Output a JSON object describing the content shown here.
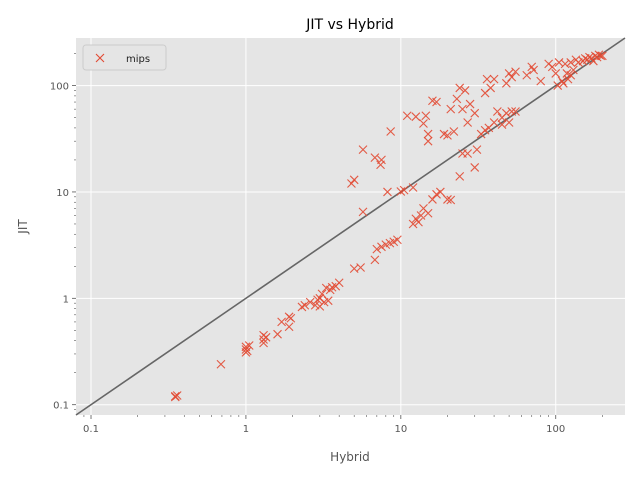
{
  "chart_data": {
    "type": "scatter",
    "title": "JIT vs Hybrid",
    "xlabel": "Hybrid",
    "ylabel": "JIT",
    "xscale": "log",
    "yscale": "log",
    "xlim": [
      0.08,
      280
    ],
    "ylim": [
      0.08,
      280
    ],
    "xticks": [
      0.1,
      1,
      10,
      100
    ],
    "xtick_labels": [
      "0.1",
      "1",
      "10",
      "100"
    ],
    "yticks": [
      0.1,
      1,
      10,
      100
    ],
    "ytick_labels": [
      "0.1",
      "1",
      "10",
      "100"
    ],
    "grid": true,
    "legend": "top-left",
    "reference_line": "y = x",
    "series": [
      {
        "name": "mips",
        "marker": "x",
        "color": "#E24A33",
        "points": [
          [
            0.35,
            0.12
          ],
          [
            0.35,
            0.118
          ],
          [
            0.36,
            0.122
          ],
          [
            0.69,
            0.24
          ],
          [
            1.0,
            0.31
          ],
          [
            1.0,
            0.33
          ],
          [
            1.0,
            0.35
          ],
          [
            1.02,
            0.32
          ],
          [
            1.05,
            0.36
          ],
          [
            1.3,
            0.38
          ],
          [
            1.3,
            0.41
          ],
          [
            1.3,
            0.45
          ],
          [
            1.35,
            0.43
          ],
          [
            1.6,
            0.46
          ],
          [
            1.9,
            0.54
          ],
          [
            1.9,
            0.67
          ],
          [
            1.95,
            0.65
          ],
          [
            1.7,
            0.6
          ],
          [
            2.3,
            0.83
          ],
          [
            2.4,
            0.86
          ],
          [
            2.6,
            0.92
          ],
          [
            2.8,
            0.86
          ],
          [
            2.9,
            0.97
          ],
          [
            3.0,
            0.84
          ],
          [
            3.0,
            1.0
          ],
          [
            3.1,
            1.1
          ],
          [
            3.2,
            0.92
          ],
          [
            3.3,
            1.25
          ],
          [
            3.4,
            0.95
          ],
          [
            3.5,
            1.2
          ],
          [
            3.6,
            1.27
          ],
          [
            3.8,
            1.3
          ],
          [
            4.0,
            1.4
          ],
          [
            5.0,
            1.9
          ],
          [
            5.5,
            1.95
          ],
          [
            6.8,
            2.3
          ],
          [
            7.0,
            2.9
          ],
          [
            7.5,
            3.05
          ],
          [
            8.0,
            3.2
          ],
          [
            8.5,
            3.3
          ],
          [
            9.0,
            3.4
          ],
          [
            9.5,
            3.55
          ],
          [
            10.0,
            10.1
          ],
          [
            10.5,
            10.4
          ],
          [
            12.0,
            5.0
          ],
          [
            12.5,
            5.6
          ],
          [
            13.0,
            5.2
          ],
          [
            13.5,
            6.0
          ],
          [
            14.0,
            7.0
          ],
          [
            15.0,
            6.3
          ],
          [
            16.0,
            8.5
          ],
          [
            17.0,
            9.5
          ],
          [
            18.0,
            10.0
          ],
          [
            20.0,
            8.5
          ],
          [
            21.0,
            8.4
          ],
          [
            24.0,
            14.0
          ],
          [
            25.0,
            23.0
          ],
          [
            27.0,
            23.0
          ],
          [
            30.0,
            17.0
          ],
          [
            31.0,
            25.0
          ],
          [
            33.0,
            35.0
          ],
          [
            35.0,
            38.0
          ],
          [
            37.0,
            40.0
          ],
          [
            40.0,
            45.0
          ],
          [
            42.0,
            57.0
          ],
          [
            45.0,
            43.0
          ],
          [
            48.0,
            55.0
          ],
          [
            50.0,
            45.0
          ],
          [
            52.0,
            57.0
          ],
          [
            55.0,
            57.0
          ],
          [
            5.7,
            6.5
          ],
          [
            4.8,
            12.0
          ],
          [
            5.0,
            13.0
          ],
          [
            5.7,
            25.0
          ],
          [
            6.8,
            21.0
          ],
          [
            7.4,
            18.0
          ],
          [
            7.5,
            20.0
          ],
          [
            8.2,
            10.0
          ],
          [
            8.6,
            37.0
          ],
          [
            11.0,
            52.0
          ],
          [
            12.0,
            11.0
          ],
          [
            12.5,
            51.0
          ],
          [
            14.0,
            44.0
          ],
          [
            14.5,
            52.0
          ],
          [
            15.0,
            30.0
          ],
          [
            15.0,
            35.0
          ],
          [
            16.0,
            72.0
          ],
          [
            17.0,
            70.0
          ],
          [
            19.0,
            35.0
          ],
          [
            20.0,
            34.0
          ],
          [
            21.0,
            60.0
          ],
          [
            22.0,
            37.0
          ],
          [
            23.0,
            75.0
          ],
          [
            24.0,
            95.0
          ],
          [
            25.0,
            60.0
          ],
          [
            26.0,
            90.0
          ],
          [
            27.0,
            45.0
          ],
          [
            28.0,
            67.0
          ],
          [
            30.0,
            55.0
          ],
          [
            35.0,
            85.0
          ],
          [
            36.0,
            115.0
          ],
          [
            38.0,
            95.0
          ],
          [
            40.0,
            115.0
          ],
          [
            45.0,
            50.0
          ],
          [
            48.0,
            105.0
          ],
          [
            50.0,
            130.0
          ],
          [
            52.0,
            120.0
          ],
          [
            55.0,
            135.0
          ],
          [
            65.0,
            125.0
          ],
          [
            70.0,
            150.0
          ],
          [
            72.0,
            140.0
          ],
          [
            80.0,
            110.0
          ],
          [
            90.0,
            160.0
          ],
          [
            95.0,
            150.0
          ],
          [
            100.0,
            130.0
          ],
          [
            103.0,
            100.0
          ],
          [
            105.0,
            165.0
          ],
          [
            110.0,
            110.0
          ],
          [
            115.0,
            160.0
          ],
          [
            118.0,
            130.0
          ],
          [
            120.0,
            115.0
          ],
          [
            125.0,
            165.0
          ],
          [
            130.0,
            140.0
          ],
          [
            135.0,
            175.0
          ],
          [
            140.0,
            165.0
          ],
          [
            150.0,
            170.0
          ],
          [
            155.0,
            180.0
          ],
          [
            160.0,
            175.0
          ],
          [
            165.0,
            185.0
          ],
          [
            170.0,
            180.0
          ],
          [
            175.0,
            170.0
          ],
          [
            180.0,
            190.0
          ],
          [
            185.0,
            185.0
          ],
          [
            190.0,
            195.0
          ],
          [
            195.0,
            190.0
          ],
          [
            200.0,
            190.0
          ],
          [
            125.0,
            125.0
          ],
          [
            112.0,
            105.0
          ]
        ]
      }
    ]
  }
}
